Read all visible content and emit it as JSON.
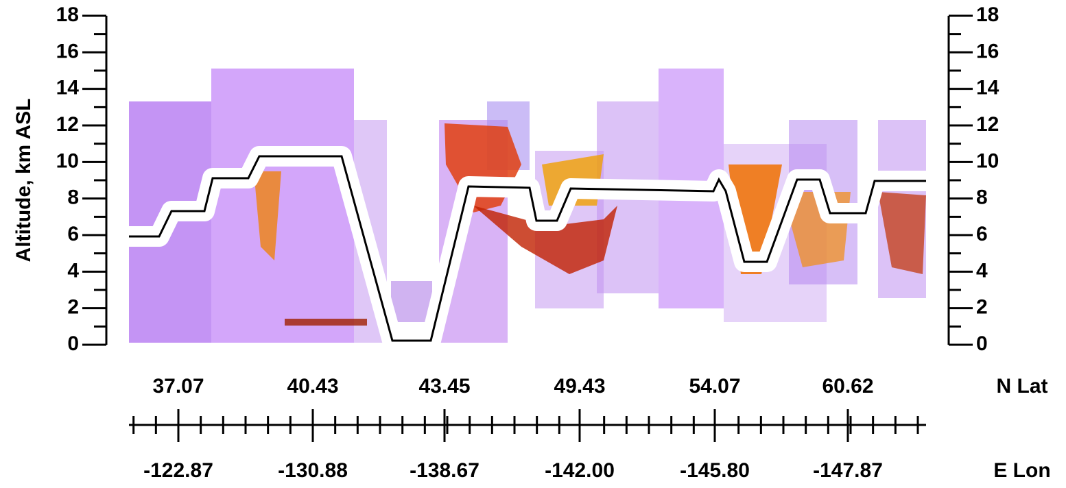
{
  "chart_data": {
    "type": "lidar-curtain",
    "y_label": "Altitude, km ASL",
    "ylim": [
      0,
      18
    ],
    "yticks": [
      0,
      2,
      4,
      6,
      8,
      10,
      12,
      14,
      16,
      18
    ],
    "y2lim": [
      0,
      18
    ],
    "y2ticks": [
      0,
      2,
      4,
      6,
      8,
      10,
      12,
      14,
      16,
      18
    ],
    "lat_label": "N Lat",
    "lon_label": "E Lon",
    "lat": [
      "37.07",
      "40.43",
      "43.45",
      "49.43",
      "54.07",
      "60.62"
    ],
    "lon": [
      "-122.87",
      "-130.88",
      "-138.67",
      "-142.00",
      "-145.80",
      "-147.87"
    ]
  }
}
